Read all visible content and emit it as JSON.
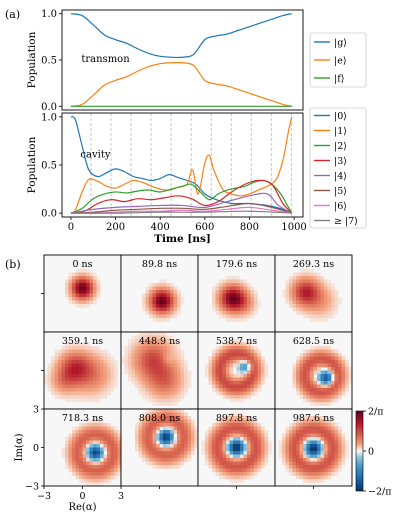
{
  "panel_a_label": "(a)",
  "panel_b_label": "(b)",
  "colors": {
    "blue": "#1f77b4",
    "orange": "#ff7f0e",
    "green": "#2ca02c",
    "red": "#d62728",
    "purple": "#9467bd",
    "brown": "#8c564b",
    "pink": "#e377c2",
    "gray": "#7f7f7f",
    "diverging_positive": "#8b0a1e",
    "diverging_negative": "#0b3d78"
  },
  "chart_data": [
    {
      "id": "transmon",
      "type": "line",
      "annotation": "transmon",
      "ylabel": "Population",
      "xlim": [
        -40,
        1040
      ],
      "ylim": [
        -0.04,
        1.04
      ],
      "yticks": [
        "0.0",
        "0.5",
        "1.0"
      ],
      "legend_position": "right",
      "series": [
        {
          "name": "|g⟩",
          "color": "#1f77b4",
          "x": [
            0,
            50,
            100,
            150,
            200,
            250,
            300,
            350,
            400,
            450,
            500,
            550,
            600,
            650,
            700,
            750,
            800,
            850,
            900,
            950,
            990
          ],
          "y": [
            1.0,
            0.98,
            0.88,
            0.77,
            0.72,
            0.68,
            0.62,
            0.57,
            0.54,
            0.53,
            0.53,
            0.56,
            0.72,
            0.76,
            0.78,
            0.82,
            0.86,
            0.9,
            0.94,
            0.98,
            1.0
          ]
        },
        {
          "name": "|e⟩",
          "color": "#ff7f0e",
          "x": [
            0,
            50,
            100,
            150,
            200,
            250,
            300,
            350,
            400,
            450,
            500,
            550,
            600,
            650,
            700,
            750,
            800,
            850,
            900,
            950,
            990
          ],
          "y": [
            0.0,
            0.02,
            0.12,
            0.23,
            0.28,
            0.32,
            0.38,
            0.43,
            0.46,
            0.47,
            0.47,
            0.44,
            0.28,
            0.24,
            0.22,
            0.18,
            0.14,
            0.1,
            0.06,
            0.02,
            0.0
          ]
        },
        {
          "name": "|f⟩",
          "color": "#2ca02c",
          "x": [
            0,
            250,
            500,
            750,
            990
          ],
          "y": [
            0.0,
            0.0,
            0.0,
            0.0,
            0.0
          ]
        }
      ]
    },
    {
      "id": "cavity",
      "type": "line",
      "annotation": "cavity",
      "xlabel": "Time [ns]",
      "ylabel": "Population",
      "xlim": [
        -40,
        1040
      ],
      "ylim": [
        -0.04,
        1.04
      ],
      "xticks": [
        0,
        200,
        400,
        600,
        800,
        1000
      ],
      "yticks": [
        "0.0",
        "0.5",
        "1.0"
      ],
      "vlines": [
        89.8,
        179.6,
        269.3,
        359.1,
        448.9,
        538.7,
        628.5,
        718.3,
        808.0,
        897.8,
        987.6
      ],
      "legend_position": "right",
      "series": [
        {
          "name": "|0⟩",
          "color": "#1f77b4",
          "x": [
            0,
            20,
            50,
            80,
            120,
            160,
            200,
            240,
            280,
            320,
            360,
            400,
            440,
            480,
            520,
            560,
            600,
            640,
            680,
            720,
            760,
            800,
            840,
            880,
            920,
            960,
            990
          ],
          "y": [
            1.0,
            0.97,
            0.7,
            0.45,
            0.38,
            0.42,
            0.46,
            0.43,
            0.38,
            0.36,
            0.34,
            0.36,
            0.4,
            0.37,
            0.34,
            0.3,
            0.2,
            0.15,
            0.12,
            0.1,
            0.1,
            0.1,
            0.09,
            0.08,
            0.06,
            0.03,
            0.0
          ]
        },
        {
          "name": "|1⟩",
          "color": "#ff7f0e",
          "x": [
            0,
            20,
            50,
            80,
            120,
            160,
            200,
            240,
            280,
            320,
            360,
            400,
            440,
            480,
            520,
            545,
            570,
            600,
            620,
            640,
            680,
            720,
            760,
            800,
            840,
            880,
            920,
            950,
            975,
            990
          ],
          "y": [
            0.0,
            0.03,
            0.22,
            0.35,
            0.33,
            0.28,
            0.26,
            0.3,
            0.34,
            0.32,
            0.28,
            0.25,
            0.24,
            0.27,
            0.3,
            0.45,
            0.2,
            0.52,
            0.6,
            0.45,
            0.25,
            0.2,
            0.18,
            0.2,
            0.24,
            0.28,
            0.35,
            0.55,
            0.85,
            1.0
          ]
        },
        {
          "name": "|2⟩",
          "color": "#2ca02c",
          "x": [
            0,
            50,
            100,
            150,
            200,
            250,
            300,
            350,
            400,
            450,
            500,
            540,
            580,
            620,
            660,
            700,
            740,
            780,
            820,
            860,
            900,
            940,
            970,
            990
          ],
          "y": [
            0.0,
            0.05,
            0.15,
            0.2,
            0.22,
            0.21,
            0.23,
            0.24,
            0.22,
            0.25,
            0.28,
            0.3,
            0.22,
            0.14,
            0.2,
            0.24,
            0.26,
            0.28,
            0.32,
            0.34,
            0.3,
            0.2,
            0.08,
            0.0
          ]
        },
        {
          "name": "|3⟩",
          "color": "#d62728",
          "x": [
            0,
            60,
            120,
            180,
            240,
            300,
            360,
            420,
            480,
            540,
            600,
            660,
            720,
            780,
            840,
            900,
            950,
            990
          ],
          "y": [
            0.0,
            0.02,
            0.1,
            0.14,
            0.12,
            0.15,
            0.14,
            0.16,
            0.18,
            0.15,
            0.08,
            0.12,
            0.22,
            0.3,
            0.34,
            0.3,
            0.1,
            0.0
          ]
        },
        {
          "name": "|4⟩",
          "color": "#9467bd",
          "x": [
            0,
            100,
            200,
            300,
            400,
            500,
            600,
            700,
            800,
            880,
            930,
            990
          ],
          "y": [
            0.0,
            0.04,
            0.06,
            0.07,
            0.08,
            0.08,
            0.06,
            0.12,
            0.18,
            0.2,
            0.08,
            0.0
          ]
        },
        {
          "name": "|5⟩",
          "color": "#8c564b",
          "x": [
            0,
            100,
            200,
            300,
            400,
            500,
            600,
            700,
            800,
            900,
            990
          ],
          "y": [
            0.0,
            0.01,
            0.03,
            0.04,
            0.05,
            0.05,
            0.04,
            0.07,
            0.1,
            0.06,
            0.0
          ]
        },
        {
          "name": "|6⟩",
          "color": "#e377c2",
          "x": [
            0,
            100,
            200,
            300,
            400,
            500,
            600,
            700,
            800,
            900,
            990
          ],
          "y": [
            0.0,
            0.0,
            0.01,
            0.02,
            0.02,
            0.03,
            0.02,
            0.04,
            0.06,
            0.03,
            0.0
          ]
        },
        {
          "name": "≥ |7⟩",
          "color": "#7f7f7f",
          "x": [
            0,
            200,
            400,
            600,
            800,
            990
          ],
          "y": [
            0.0,
            0.0,
            0.01,
            0.01,
            0.02,
            0.0
          ]
        }
      ]
    },
    {
      "id": "wigner_grid",
      "type": "heatmap",
      "xlabel": "Re(α)",
      "ylabel": "Im(α)",
      "xticks": [
        "−3",
        "0",
        "3"
      ],
      "yticks": [
        "3",
        "0",
        "−3"
      ],
      "colorbar": {
        "max_label": "2/π",
        "mid_label": "0",
        "min_label": "−2/π",
        "range": [
          -0.6366,
          0.6366
        ]
      },
      "cells": [
        {
          "time": "0 ns",
          "features": [
            {
              "re": 0.0,
              "im": 0.4,
              "amp": 1.0,
              "sigma": 0.55
            }
          ]
        },
        {
          "time": "89.8 ns",
          "features": [
            {
              "re": 0.2,
              "im": -0.6,
              "amp": 1.0,
              "sigma": 0.6
            }
          ]
        },
        {
          "time": "179.6 ns",
          "features": [
            {
              "re": -0.3,
              "im": -0.4,
              "amp": 0.95,
              "sigma": 0.65
            },
            {
              "re": 0.6,
              "im": -0.8,
              "amp": 0.2,
              "sigma": 0.6
            }
          ]
        },
        {
          "time": "269.3 ns",
          "features": [
            {
              "re": -0.6,
              "im": 0.1,
              "amp": 0.65,
              "sigma": 0.7
            },
            {
              "re": 0.5,
              "im": -0.6,
              "amp": 0.2,
              "sigma": 0.8
            }
          ]
        },
        {
          "time": "359.1 ns",
          "features": [
            {
              "re": -0.6,
              "im": 0.2,
              "amp": 0.55,
              "sigma": 0.8
            },
            {
              "re": 0.7,
              "im": -0.3,
              "amp": 0.3,
              "sigma": 1.0
            },
            {
              "re": -1.4,
              "im": -0.8,
              "amp": 0.25,
              "sigma": 0.7
            }
          ]
        },
        {
          "time": "448.9 ns",
          "features": [
            {
              "re": -0.5,
              "im": 0.8,
              "amp": 0.5,
              "sigma": 1.0
            },
            {
              "re": 0.6,
              "im": 0.9,
              "amp": -0.15,
              "sigma": 0.35
            },
            {
              "re": 0.4,
              "im": -0.8,
              "amp": 0.35,
              "sigma": 0.9
            }
          ]
        },
        {
          "time": "538.7 ns",
          "features": [
            {
              "re": 0.0,
              "im": 0.0,
              "ring": 1.3,
              "amp": 0.5,
              "sigma": 0.45
            },
            {
              "re": 0.7,
              "im": 0.3,
              "amp": -0.6,
              "sigma": 0.35
            }
          ]
        },
        {
          "time": "628.5 ns",
          "features": [
            {
              "re": 0.6,
              "im": -0.4,
              "ring": 1.3,
              "amp": 0.45,
              "sigma": 0.45
            },
            {
              "re": 1.0,
              "im": -0.6,
              "amp": -0.85,
              "sigma": 0.38
            }
          ]
        },
        {
          "time": "718.3 ns",
          "features": [
            {
              "re": 1.0,
              "im": -0.4,
              "ring": 1.4,
              "amp": 0.4,
              "sigma": 0.5
            },
            {
              "re": 1.0,
              "im": -0.4,
              "amp": -0.9,
              "sigma": 0.42
            }
          ]
        },
        {
          "time": "808.0 ns",
          "features": [
            {
              "re": 0.5,
              "im": 0.8,
              "ring": 1.4,
              "amp": 0.4,
              "sigma": 0.5
            },
            {
              "re": 0.5,
              "im": 0.8,
              "amp": -0.95,
              "sigma": 0.42
            }
          ]
        },
        {
          "time": "897.8 ns",
          "features": [
            {
              "re": 0.0,
              "im": 0.0,
              "ring": 1.5,
              "amp": 0.45,
              "sigma": 0.5
            },
            {
              "re": 0.0,
              "im": 0.0,
              "amp": -1.0,
              "sigma": 0.45
            }
          ]
        },
        {
          "time": "987.6 ns",
          "features": [
            {
              "re": 0.0,
              "im": -0.1,
              "ring": 1.5,
              "amp": 0.45,
              "sigma": 0.5
            },
            {
              "re": 0.0,
              "im": -0.1,
              "amp": -1.0,
              "sigma": 0.45
            }
          ]
        }
      ]
    }
  ]
}
